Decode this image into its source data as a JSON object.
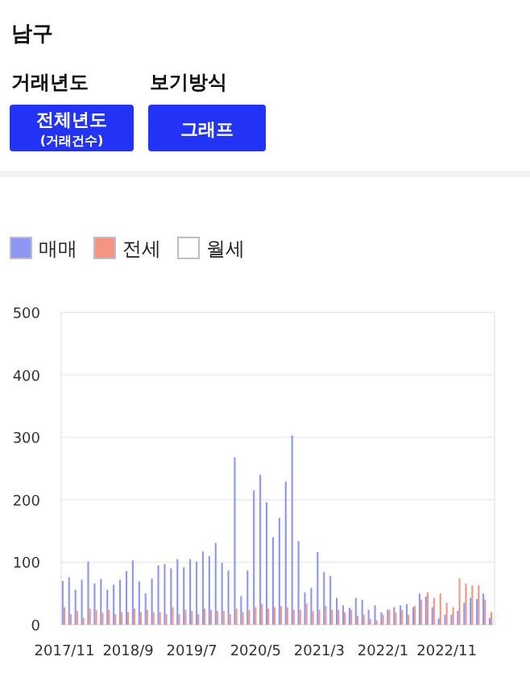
{
  "chart_data": {
    "type": "bar",
    "title": "남구",
    "annotations": [
      "거래년도",
      "보기방식",
      "전체년도",
      "(거래건수)",
      "그래프"
    ],
    "categories": [
      "2017/11",
      null,
      null,
      null,
      null,
      null,
      null,
      null,
      null,
      null,
      "2018/9",
      null,
      null,
      null,
      null,
      null,
      null,
      null,
      null,
      null,
      "2019/7",
      null,
      null,
      null,
      null,
      null,
      null,
      null,
      null,
      null,
      "2020/5",
      null,
      null,
      null,
      null,
      null,
      null,
      null,
      null,
      null,
      "2021/3",
      null,
      null,
      null,
      null,
      null,
      null,
      null,
      null,
      null,
      "2022/1",
      null,
      null,
      null,
      null,
      null,
      null,
      null,
      null,
      null,
      "2022/11",
      null,
      null,
      null,
      null,
      null,
      null,
      null
    ],
    "series": [
      {
        "name": "매매",
        "color": "#8d97f3",
        "values": [
          70,
          76,
          56,
          72,
          101,
          66,
          73,
          56,
          64,
          72,
          86,
          103,
          69,
          50,
          74,
          95,
          97,
          90,
          105,
          92,
          105,
          101,
          117,
          110,
          131,
          99,
          87,
          268,
          46,
          87,
          215,
          240,
          196,
          140,
          171,
          229,
          303,
          134,
          52,
          59,
          116,
          84,
          78,
          43,
          31,
          27,
          43,
          40,
          24,
          31,
          20,
          24,
          28,
          31,
          33,
          28,
          50,
          45,
          28,
          10,
          16,
          16,
          22,
          35,
          43,
          41,
          50,
          11
        ]
      },
      {
        "name": "전세",
        "color": "#f5957f",
        "values": [
          28,
          17,
          22,
          11,
          26,
          24,
          19,
          24,
          17,
          20,
          20,
          26,
          20,
          24,
          20,
          20,
          17,
          28,
          17,
          24,
          22,
          17,
          26,
          24,
          22,
          22,
          17,
          26,
          20,
          24,
          28,
          33,
          26,
          28,
          30,
          28,
          24,
          24,
          34,
          22,
          24,
          30,
          24,
          24,
          20,
          24,
          14,
          16,
          9,
          7,
          16,
          24,
          20,
          24,
          16,
          30,
          40,
          52,
          43,
          50,
          35,
          28,
          74,
          66,
          63,
          63,
          40,
          20
        ]
      },
      {
        "name": "월세",
        "color": "#ffffff",
        "values": [
          0,
          0,
          0,
          0,
          0,
          0,
          0,
          0,
          0,
          0,
          0,
          0,
          0,
          0,
          0,
          0,
          0,
          0,
          0,
          0,
          0,
          0,
          0,
          0,
          0,
          0,
          0,
          0,
          0,
          0,
          0,
          0,
          0,
          0,
          0,
          0,
          0,
          0,
          0,
          0,
          0,
          0,
          0,
          0,
          0,
          0,
          0,
          0,
          0,
          0,
          0,
          0,
          0,
          0,
          0,
          0,
          0,
          0,
          0,
          0,
          0,
          0,
          0,
          0,
          0,
          0,
          0,
          0
        ]
      }
    ],
    "ylim": [
      0,
      500
    ],
    "yticks": [
      0,
      100,
      200,
      300,
      400,
      500
    ],
    "grid": "y",
    "legend": "top left"
  }
}
